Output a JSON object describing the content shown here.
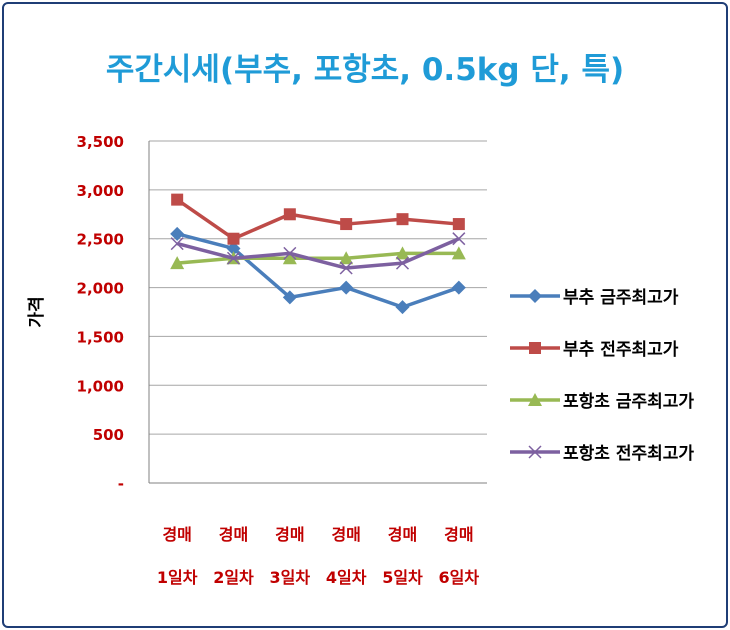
{
  "chart_data": {
    "type": "line",
    "title": "주간시세(부추, 포항초, 0.5kg 단, 특)",
    "ylabel": "가격",
    "ylim": [
      0,
      3500
    ],
    "yticks": [
      {
        "value": 0,
        "label": "-"
      },
      {
        "value": 500,
        "label": "500"
      },
      {
        "value": 1000,
        "label": "1,000"
      },
      {
        "value": 1500,
        "label": "1,500"
      },
      {
        "value": 2000,
        "label": "2,000"
      },
      {
        "value": 2500,
        "label": "2,500"
      },
      {
        "value": 3000,
        "label": "3,000"
      },
      {
        "value": 3500,
        "label": "3,500"
      }
    ],
    "categories": [
      [
        "경매",
        "1일차"
      ],
      [
        "경매",
        "2일차"
      ],
      [
        "경매",
        "3일차"
      ],
      [
        "경매",
        "4일차"
      ],
      [
        "경매",
        "5일차"
      ],
      [
        "경매",
        "6일차"
      ]
    ],
    "grid": true,
    "legend_position": "right",
    "series": [
      {
        "name": "부추 금주최고가",
        "values": [
          2550,
          2400,
          1900,
          2000,
          1800,
          2000
        ],
        "color": "#4a7ebb",
        "marker": "diamond"
      },
      {
        "name": "부추 전주최고가",
        "values": [
          2900,
          2500,
          2750,
          2650,
          2700,
          2650
        ],
        "color": "#be4b48",
        "marker": "square"
      },
      {
        "name": "포항초 금주최고가",
        "values": [
          2250,
          2300,
          2300,
          2300,
          2350,
          2350
        ],
        "color": "#98b954",
        "marker": "triangle"
      },
      {
        "name": "포항초 전주최고가",
        "values": [
          2450,
          2300,
          2350,
          2200,
          2250,
          2500
        ],
        "color": "#7d60a0",
        "marker": "x"
      }
    ],
    "colors": {
      "title": "#1f9bd7",
      "tick_labels": "#c00000",
      "grid": "#a6a6a6",
      "frame": "#1f3e76"
    }
  }
}
